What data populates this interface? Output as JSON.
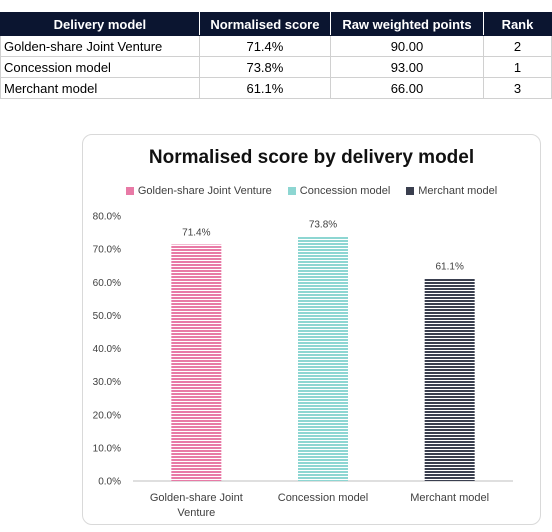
{
  "table": {
    "headers": [
      "Delivery model",
      "Normalised score",
      "Raw weighted points",
      "Rank"
    ],
    "rows": [
      [
        "Golden-share Joint Venture",
        "71.4%",
        "90.00",
        "2"
      ],
      [
        "Concession model",
        "73.8%",
        "93.00",
        "1"
      ],
      [
        "Merchant model",
        "61.1%",
        "66.00",
        "3"
      ]
    ]
  },
  "chart_data": {
    "type": "bar",
    "title": "Normalised score by delivery model",
    "categories": [
      "Golden-share Joint Venture",
      "Concession model",
      "Merchant model"
    ],
    "category_lines": [
      [
        "Golden-share Joint",
        "Venture"
      ],
      [
        "Concession model"
      ],
      [
        "Merchant model"
      ]
    ],
    "values": [
      71.4,
      73.8,
      61.1
    ],
    "data_labels": [
      "71.4%",
      "73.8%",
      "61.1%"
    ],
    "legend": [
      "Golden-share Joint Venture",
      "Concession model",
      "Merchant model"
    ],
    "legend_position": "top",
    "colors": [
      "#e87aa6",
      "#8dd6d2",
      "#3a3f4f"
    ],
    "ylim": [
      0,
      80
    ],
    "yticks": [
      "0.0%",
      "10.0%",
      "20.0%",
      "30.0%",
      "40.0%",
      "50.0%",
      "60.0%",
      "70.0%",
      "80.0%"
    ],
    "grid": false,
    "xlabel": "",
    "ylabel": ""
  }
}
